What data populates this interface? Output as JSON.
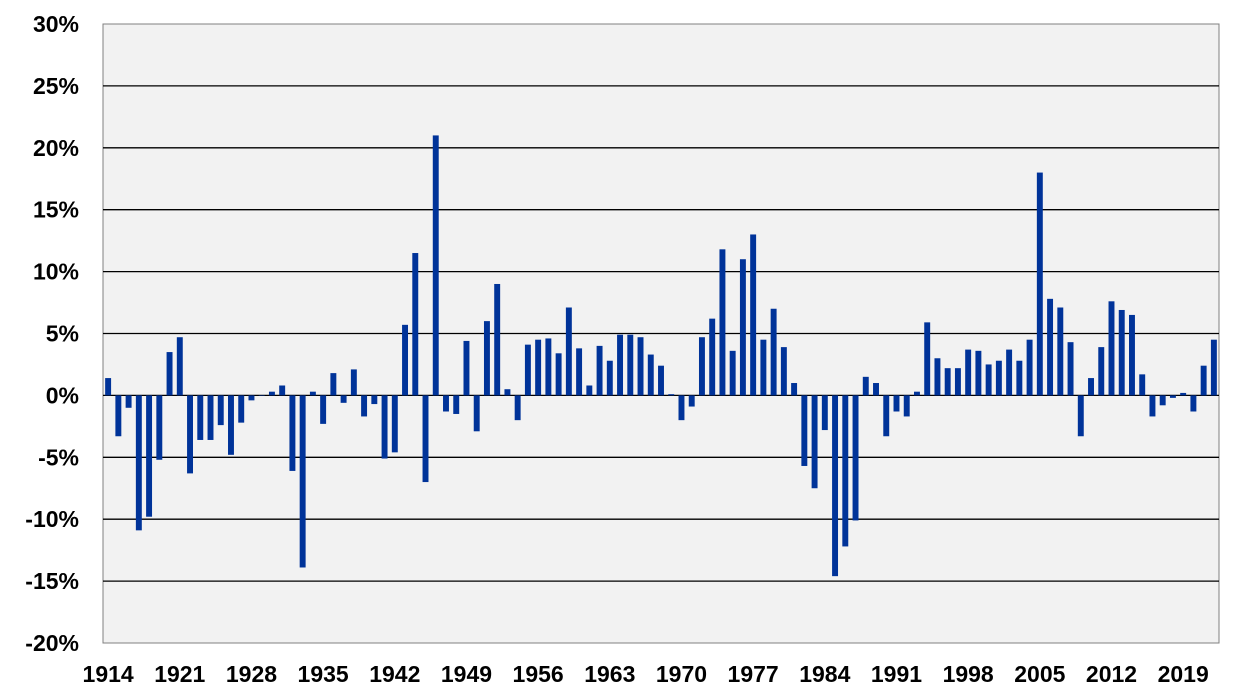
{
  "chart_data": {
    "type": "bar",
    "title": "",
    "xlabel": "",
    "ylabel": "",
    "ylim": [
      -0.2,
      0.3
    ],
    "y_tick_values": [
      -0.2,
      -0.15,
      -0.1,
      -0.05,
      0,
      0.05,
      0.1,
      0.15,
      0.2,
      0.25,
      0.3
    ],
    "y_tick_labels": [
      "-20%",
      "-15%",
      "-10%",
      "-5%",
      "0%",
      "5%",
      "10%",
      "15%",
      "20%",
      "25%",
      "30%"
    ],
    "x_tick_labels": [
      "1914",
      "1921",
      "1928",
      "1935",
      "1942",
      "1949",
      "1956",
      "1963",
      "1970",
      "1977",
      "1984",
      "1991",
      "1998",
      "2005",
      "2012",
      "2019"
    ],
    "grid": true,
    "grid_axis": "y",
    "legend": "none",
    "colors": {
      "bar": "#003399",
      "plot_background": "#f2f2f2",
      "gridline": "#000000"
    },
    "categories": [
      "1914",
      "1915",
      "1916",
      "1917",
      "1918",
      "1919",
      "1920",
      "1921",
      "1922",
      "1923",
      "1924",
      "1925",
      "1926",
      "1927",
      "1928",
      "1929",
      "1930",
      "1931",
      "1932",
      "1933",
      "1934",
      "1935",
      "1936",
      "1937",
      "1938",
      "1939",
      "1940",
      "1941",
      "1942",
      "1943",
      "1944",
      "1945",
      "1946",
      "1947",
      "1948",
      "1949",
      "1950",
      "1951",
      "1952",
      "1953",
      "1954",
      "1955",
      "1956",
      "1957",
      "1958",
      "1959",
      "1960",
      "1961",
      "1962",
      "1963",
      "1964",
      "1965",
      "1966",
      "1967",
      "1968",
      "1969",
      "1970",
      "1971",
      "1972",
      "1973",
      "1974",
      "1975",
      "1976",
      "1977",
      "1978",
      "1979",
      "1980",
      "1981",
      "1982",
      "1983",
      "1984",
      "1985",
      "1986",
      "1987",
      "1988",
      "1989",
      "1990",
      "1991",
      "1992",
      "1993",
      "1994",
      "1995",
      "1996",
      "1997",
      "1998",
      "1999",
      "2000",
      "2001",
      "2002",
      "2003",
      "2004",
      "2005",
      "2006",
      "2007",
      "2008",
      "2009",
      "2010",
      "2011",
      "2012",
      "2013",
      "2014",
      "2015",
      "2016",
      "2017",
      "2018",
      "2019",
      "2020",
      "2021",
      "2022"
    ],
    "values": [
      0.014,
      -0.033,
      -0.01,
      -0.109,
      -0.098,
      -0.052,
      0.035,
      0.047,
      -0.063,
      -0.036,
      -0.036,
      -0.024,
      -0.048,
      -0.022,
      -0.004,
      0.0,
      0.003,
      0.008,
      -0.061,
      -0.139,
      0.003,
      -0.023,
      0.018,
      -0.006,
      0.021,
      -0.017,
      -0.007,
      -0.051,
      -0.046,
      0.057,
      0.115,
      -0.07,
      0.21,
      -0.013,
      -0.015,
      0.044,
      -0.029,
      0.06,
      0.09,
      0.005,
      -0.02,
      0.041,
      0.045,
      0.046,
      0.034,
      0.071,
      0.038,
      0.008,
      0.04,
      0.028,
      0.049,
      0.049,
      0.047,
      0.033,
      0.024,
      0.001,
      -0.02,
      -0.009,
      0.047,
      0.062,
      0.118,
      0.036,
      0.11,
      0.13,
      0.045,
      0.07,
      0.039,
      0.01,
      -0.057,
      -0.075,
      -0.028,
      -0.146,
      -0.122,
      -0.101,
      0.015,
      0.01,
      -0.033,
      -0.013,
      -0.017,
      0.003,
      0.059,
      0.03,
      0.022,
      0.022,
      0.037,
      0.036,
      0.025,
      0.028,
      0.037,
      0.028,
      0.045,
      0.18,
      0.078,
      0.071,
      0.043,
      -0.033,
      0.014,
      0.039,
      0.076,
      0.069,
      0.065,
      0.017,
      -0.017,
      -0.008,
      -0.002,
      0.002,
      -0.013,
      0.024,
      0.045
    ]
  }
}
